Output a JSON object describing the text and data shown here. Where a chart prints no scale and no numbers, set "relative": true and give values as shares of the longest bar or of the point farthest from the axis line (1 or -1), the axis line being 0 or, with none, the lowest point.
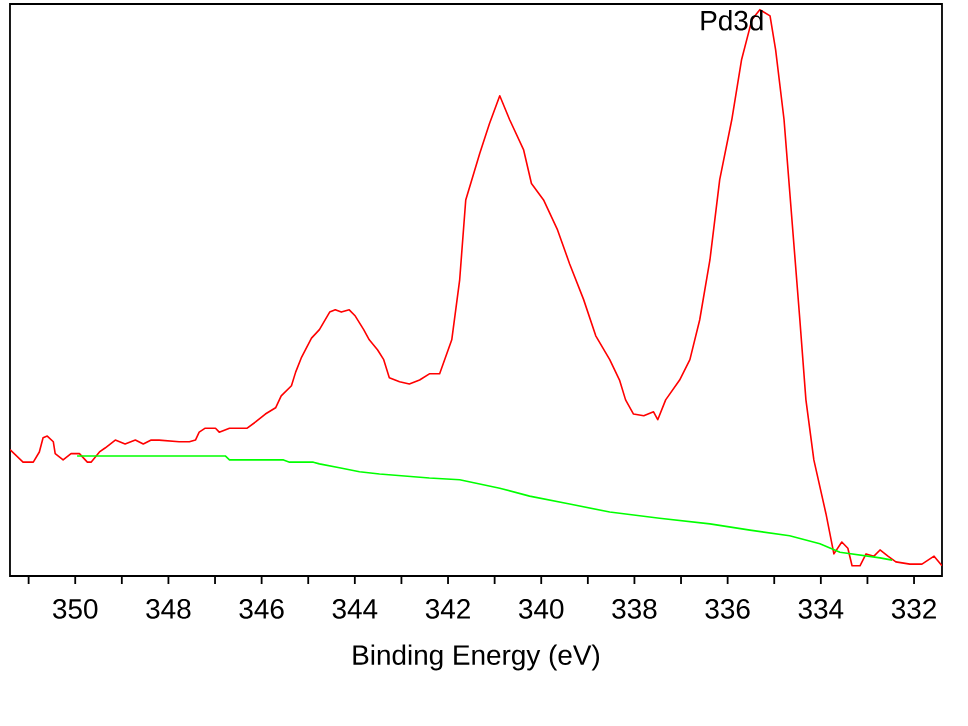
{
  "chart_data": {
    "type": "line",
    "xlabel": "Binding Energy (eV)",
    "relative": true,
    "xlim": [
      351.4,
      331.4
    ],
    "xticks": [
      {
        "value": 351,
        "label": null
      },
      350,
      {
        "value": 349,
        "label": null
      },
      348,
      {
        "value": 347,
        "label": null
      },
      346,
      {
        "value": 345,
        "label": null
      },
      344,
      {
        "value": 343,
        "label": null
      },
      342,
      {
        "value": 341,
        "label": null
      },
      340,
      {
        "value": 339,
        "label": null
      },
      338,
      {
        "value": 337,
        "label": null
      },
      336,
      {
        "value": 335,
        "label": null
      },
      334,
      {
        "value": 333,
        "label": null
      },
      332
    ],
    "grid": false,
    "marker": "none",
    "line_style": "solid",
    "annotations": [
      {
        "text": "Pd3d",
        "x": 335.31,
        "y": 1.0
      }
    ],
    "series": [
      {
        "color": "#ff0000",
        "x": [
          351.4,
          351.12,
          350.9,
          350.77,
          350.69,
          350.6,
          350.47,
          350.43,
          350.26,
          350.09,
          349.91,
          349.74,
          349.66,
          349.48,
          349.36,
          349.14,
          348.93,
          348.71,
          348.54,
          348.37,
          348.2,
          347.77,
          347.55,
          347.42,
          347.34,
          347.21,
          346.99,
          346.91,
          346.69,
          346.31,
          346.13,
          345.92,
          345.7,
          345.58,
          345.36,
          345.27,
          345.15,
          344.93,
          344.76,
          344.54,
          344.42,
          344.29,
          344.12,
          343.99,
          343.81,
          343.69,
          343.51,
          343.38,
          343.26,
          343.04,
          342.83,
          342.61,
          342.4,
          342.18,
          341.92,
          341.75,
          341.62,
          341.32,
          341.11,
          340.89,
          340.68,
          340.38,
          340.21,
          339.95,
          339.65,
          339.39,
          339.09,
          338.83,
          338.53,
          338.32,
          338.19,
          338.02,
          337.8,
          337.59,
          337.5,
          337.33,
          337.03,
          336.81,
          336.6,
          336.38,
          336.17,
          335.91,
          335.7,
          335.48,
          335.31,
          335.09,
          334.97,
          334.79,
          334.62,
          334.45,
          334.32,
          334.15,
          333.89,
          333.72,
          333.55,
          333.42,
          333.33,
          333.16,
          333.03,
          332.86,
          332.73,
          332.56,
          332.39,
          332.09,
          331.83,
          331.57,
          331.4
        ],
        "values": [
          0.223,
          0.201,
          0.201,
          0.219,
          0.244,
          0.247,
          0.237,
          0.216,
          0.205,
          0.216,
          0.216,
          0.201,
          0.201,
          0.219,
          0.226,
          0.24,
          0.233,
          0.24,
          0.233,
          0.24,
          0.24,
          0.237,
          0.237,
          0.24,
          0.254,
          0.261,
          0.261,
          0.254,
          0.261,
          0.261,
          0.272,
          0.286,
          0.297,
          0.318,
          0.336,
          0.36,
          0.385,
          0.42,
          0.435,
          0.466,
          0.47,
          0.466,
          0.47,
          0.459,
          0.435,
          0.417,
          0.399,
          0.382,
          0.35,
          0.343,
          0.339,
          0.346,
          0.357,
          0.357,
          0.417,
          0.523,
          0.664,
          0.746,
          0.799,
          0.848,
          0.806,
          0.753,
          0.693,
          0.664,
          0.611,
          0.551,
          0.488,
          0.424,
          0.382,
          0.346,
          0.311,
          0.286,
          0.283,
          0.29,
          0.276,
          0.311,
          0.346,
          0.382,
          0.452,
          0.558,
          0.7,
          0.806,
          0.912,
          0.982,
          1.0,
          0.989,
          0.929,
          0.806,
          0.629,
          0.452,
          0.311,
          0.205,
          0.11,
          0.039,
          0.06,
          0.049,
          0.018,
          0.018,
          0.039,
          0.035,
          0.046,
          0.035,
          0.025,
          0.021,
          0.021,
          0.035,
          0.018
        ]
      },
      {
        "color": "#00ff00",
        "x": [
          349.96,
          346.78,
          346.69,
          345.53,
          345.4,
          344.89,
          344.76,
          344.33,
          343.9,
          343.47,
          342.4,
          341.75,
          340.89,
          340.25,
          339.39,
          338.53,
          337.46,
          336.38,
          335.52,
          334.67,
          334.02,
          333.59,
          332.73,
          332.47
        ],
        "values": [
          0.212,
          0.212,
          0.205,
          0.205,
          0.201,
          0.201,
          0.198,
          0.191,
          0.184,
          0.18,
          0.173,
          0.17,
          0.155,
          0.141,
          0.127,
          0.113,
          0.102,
          0.092,
          0.081,
          0.071,
          0.057,
          0.042,
          0.032,
          0.028
        ]
      }
    ]
  }
}
